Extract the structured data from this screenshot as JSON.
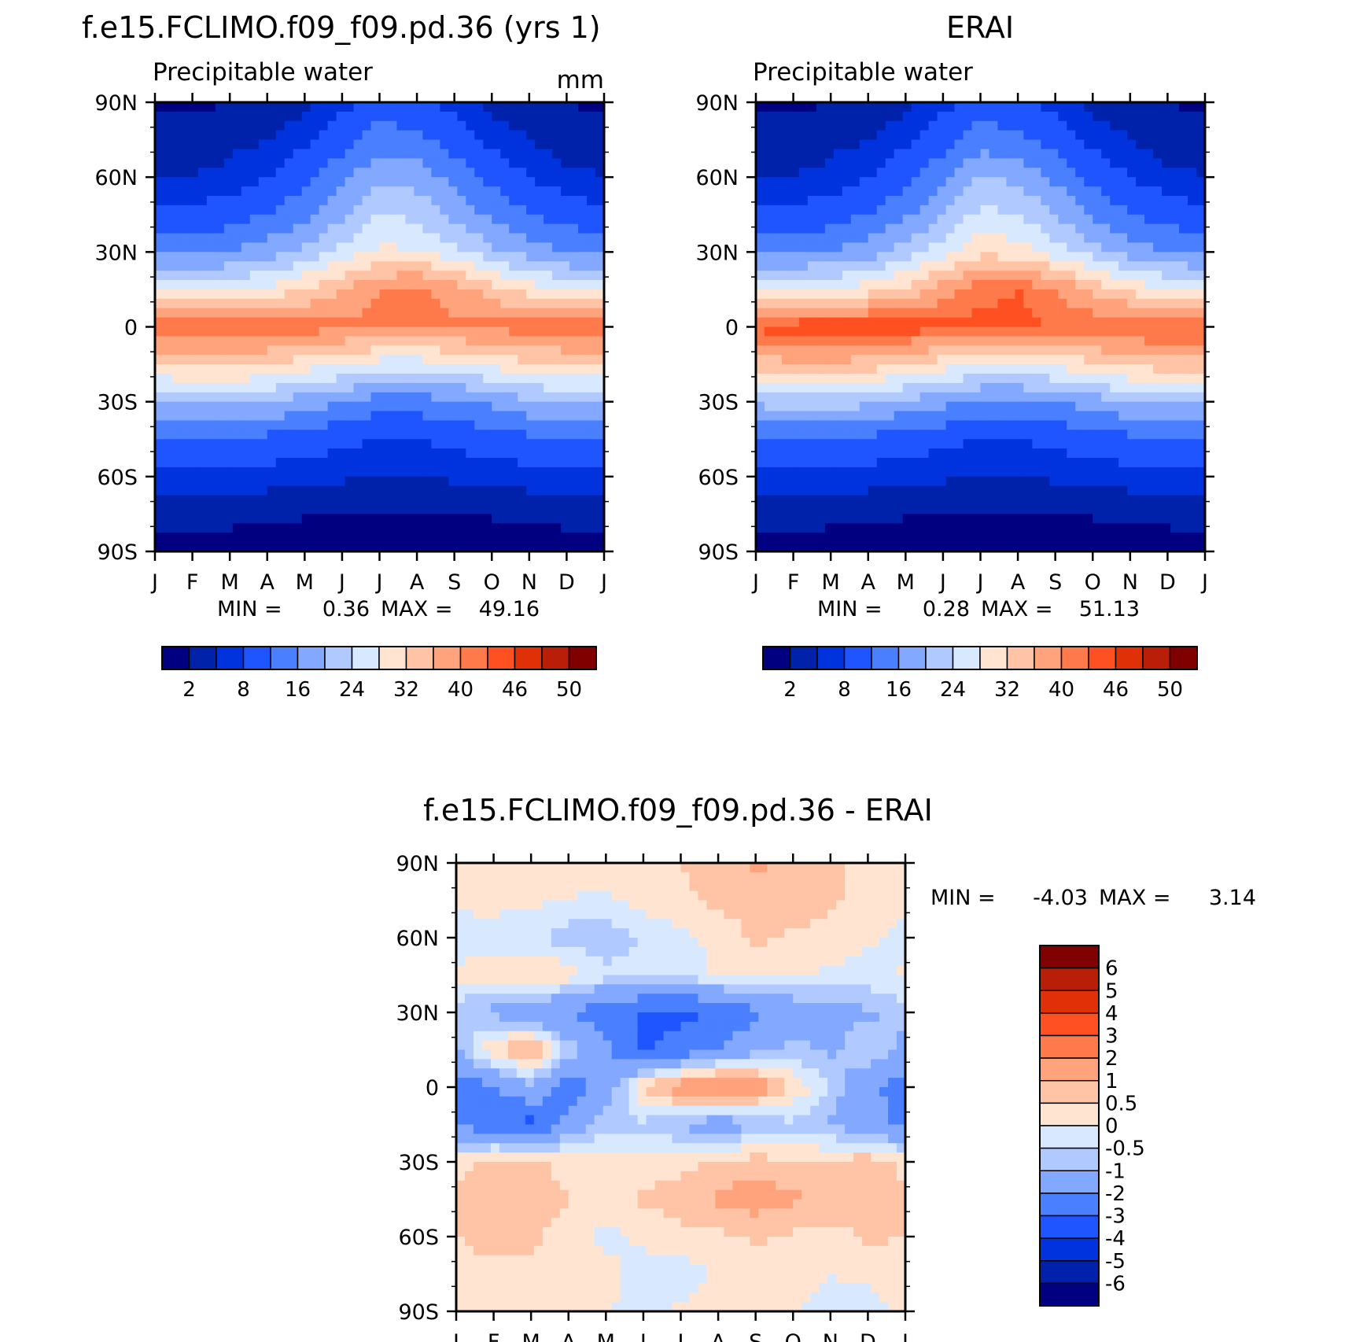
{
  "months": [
    "J",
    "F",
    "M",
    "A",
    "M",
    "J",
    "J",
    "A",
    "S",
    "O",
    "N",
    "D",
    "J"
  ],
  "lat_labels": [
    "90N",
    "60N",
    "30N",
    "0",
    "30S",
    "60S",
    "90S"
  ],
  "panels": [
    {
      "id": "model",
      "title": "f.e15.FCLIMO.f09_f09.pd.36 (yrs 1)",
      "subtitle": "Precipitable water",
      "units": "mm",
      "stats": {
        "min_label": "MIN =",
        "min": "0.36",
        "max_label": "MAX =",
        "max": "49.16"
      }
    },
    {
      "id": "obs",
      "title": "ERAI",
      "subtitle": "Precipitable water",
      "units": "",
      "stats": {
        "min_label": "MIN =",
        "min": "0.28",
        "max_label": "MAX =",
        "max": "51.13"
      }
    },
    {
      "id": "diff",
      "title": "f.e15.FCLIMO.f09_f09.pd.36 - ERAI",
      "subtitle": "",
      "units": "",
      "stats": {
        "min_label": "MIN =",
        "min": "-4.03",
        "max_label": "MAX =",
        "max": "3.14"
      }
    }
  ],
  "colorbar_abs": {
    "colors": [
      "#000080",
      "#0022aa",
      "#0033dd",
      "#1e55ff",
      "#4a7fff",
      "#82a8ff",
      "#b0c9ff",
      "#d8e8ff",
      "#ffe4d2",
      "#ffc4a6",
      "#ffa37c",
      "#ff7a4a",
      "#ff5022",
      "#e03008",
      "#b81e08",
      "#800000"
    ],
    "labels": [
      "2",
      "8",
      "16",
      "24",
      "32",
      "40",
      "46",
      "50"
    ]
  },
  "colorbar_diff": {
    "colors": [
      "#000080",
      "#0022aa",
      "#0033dd",
      "#1e55ff",
      "#4a7fff",
      "#82a8ff",
      "#b0c9ff",
      "#d8e8ff",
      "#ffe4d2",
      "#ffc4a6",
      "#ffa37c",
      "#ff7a4a",
      "#ff5022",
      "#e03008",
      "#b81e08",
      "#800000"
    ],
    "labels": [
      "6",
      "5",
      "4",
      "3",
      "2",
      "1",
      "0.5",
      "0",
      "-0.5",
      "-1",
      "-2",
      "-3",
      "-4",
      "-5",
      "-6"
    ]
  },
  "chart_data": [
    {
      "type": "heatmap",
      "title": "f.e15.FCLIMO.f09_f09.pd.36 (yrs 1)",
      "subtitle": "Precipitable water",
      "units": "mm",
      "x": [
        "Jan",
        "Feb",
        "Mar",
        "Apr",
        "May",
        "Jun",
        "Jul",
        "Aug",
        "Sep",
        "Oct",
        "Nov",
        "Dec",
        "Jan"
      ],
      "y": [
        90,
        75,
        60,
        45,
        30,
        15,
        0,
        -15,
        -30,
        -45,
        -60,
        -75,
        -90
      ],
      "z": [
        [
          1.5,
          1.5,
          2,
          3,
          4,
          7,
          10,
          9,
          7,
          4,
          2,
          2,
          1.5
        ],
        [
          3,
          3,
          4,
          5,
          7,
          10,
          14,
          13,
          10,
          7,
          5,
          3,
          3
        ],
        [
          5,
          5,
          6,
          8,
          11,
          15,
          19,
          18,
          15,
          11,
          8,
          6,
          5
        ],
        [
          9,
          9,
          10,
          12,
          15,
          19,
          24,
          23,
          19,
          15,
          12,
          10,
          9
        ],
        [
          15,
          15,
          16,
          18,
          21,
          25,
          29,
          28,
          25,
          21,
          18,
          16,
          15
        ],
        [
          26,
          26,
          27,
          29,
          32,
          36,
          40,
          41,
          38,
          34,
          30,
          27,
          26
        ],
        [
          43,
          44,
          44,
          43,
          42,
          41,
          41,
          41,
          41,
          41,
          42,
          43,
          43
        ],
        [
          32,
          33,
          33,
          32,
          30,
          28,
          26,
          26,
          27,
          29,
          31,
          32,
          32
        ],
        [
          20,
          21,
          21,
          20,
          18,
          16,
          14,
          14,
          15,
          17,
          19,
          20,
          20
        ],
        [
          12,
          12,
          12,
          11,
          10,
          9,
          8,
          8,
          9,
          10,
          11,
          12,
          12
        ],
        [
          7,
          7,
          7,
          6.5,
          6,
          5.5,
          5,
          5,
          5.5,
          6,
          6.5,
          7,
          7
        ],
        [
          3,
          3,
          2.8,
          2.5,
          2.2,
          2,
          1.8,
          1.8,
          2,
          2.2,
          2.5,
          2.8,
          3
        ],
        [
          0.8,
          0.8,
          0.7,
          0.6,
          0.5,
          0.45,
          0.4,
          0.4,
          0.45,
          0.5,
          0.6,
          0.7,
          0.8
        ]
      ],
      "ylim": [
        -90,
        90
      ],
      "levels": [
        2,
        5,
        8,
        12,
        16,
        20,
        24,
        28,
        32,
        36,
        40,
        43,
        46,
        48,
        50
      ],
      "min": 0.36,
      "max": 49.16
    },
    {
      "type": "heatmap",
      "title": "ERAI",
      "subtitle": "Precipitable water",
      "x": [
        "Jan",
        "Feb",
        "Mar",
        "Apr",
        "May",
        "Jun",
        "Jul",
        "Aug",
        "Sep",
        "Oct",
        "Nov",
        "Dec",
        "Jan"
      ],
      "y": [
        90,
        75,
        60,
        45,
        30,
        15,
        0,
        -15,
        -30,
        -45,
        -60,
        -75,
        -90
      ],
      "z": [
        [
          1.5,
          1.5,
          2,
          3,
          4,
          7,
          10,
          9,
          7,
          4,
          2,
          2,
          1.5
        ],
        [
          3,
          3,
          4,
          5,
          7,
          10,
          14,
          13,
          10,
          7,
          5,
          3,
          3
        ],
        [
          5,
          5,
          6,
          8,
          11,
          15,
          20,
          19,
          15,
          11,
          8,
          6,
          5
        ],
        [
          9,
          9,
          10,
          12,
          15,
          20,
          25,
          24,
          20,
          15,
          12,
          10,
          9
        ],
        [
          15,
          15,
          16,
          18,
          22,
          26,
          31,
          30,
          26,
          22,
          18,
          16,
          15
        ],
        [
          27,
          27,
          28,
          30,
          33,
          38,
          42,
          43,
          40,
          35,
          31,
          28,
          27
        ],
        [
          44,
          45,
          46,
          46,
          45,
          44,
          44,
          44,
          43,
          43,
          44,
          44,
          44
        ],
        [
          34,
          35,
          35,
          34,
          32,
          30,
          28,
          28,
          29,
          31,
          33,
          34,
          34
        ],
        [
          21,
          22,
          22,
          21,
          19,
          17,
          15,
          15,
          16,
          18,
          20,
          21,
          21
        ],
        [
          12,
          12,
          12,
          11,
          10,
          9,
          8,
          8,
          9,
          10,
          11,
          12,
          12
        ],
        [
          7,
          7,
          7,
          6.5,
          6,
          5.5,
          5,
          5,
          5.5,
          6,
          6.5,
          7,
          7
        ],
        [
          3,
          3,
          2.8,
          2.5,
          2.2,
          2,
          1.8,
          1.8,
          2,
          2.2,
          2.5,
          2.8,
          3
        ],
        [
          0.7,
          0.7,
          0.6,
          0.5,
          0.45,
          0.4,
          0.35,
          0.35,
          0.4,
          0.45,
          0.5,
          0.6,
          0.7
        ]
      ],
      "ylim": [
        -90,
        90
      ],
      "levels": [
        2,
        5,
        8,
        12,
        16,
        20,
        24,
        28,
        32,
        36,
        40,
        43,
        46,
        48,
        50
      ],
      "min": 0.28,
      "max": 51.13
    },
    {
      "type": "heatmap",
      "title": "f.e15.FCLIMO.f09_f09.pd.36 - ERAI",
      "x": [
        "Jan",
        "Feb",
        "Mar",
        "Apr",
        "May",
        "Jun",
        "Jul",
        "Aug",
        "Sep",
        "Oct",
        "Nov",
        "Dec",
        "Jan"
      ],
      "y": [
        90,
        75,
        60,
        45,
        30,
        15,
        0,
        -15,
        -30,
        -45,
        -60,
        -75,
        -90
      ],
      "z": [
        [
          0.2,
          0.2,
          0.2,
          0.1,
          0.2,
          0.3,
          0.5,
          0.8,
          1.1,
          0.9,
          0.6,
          0.3,
          0.2
        ],
        [
          0.1,
          0.2,
          0.1,
          0,
          -0.1,
          0.2,
          0.4,
          0.6,
          0.7,
          0.8,
          0.6,
          0.3,
          0.1
        ],
        [
          -0.2,
          -0.3,
          -0.4,
          -0.8,
          -0.9,
          -0.4,
          -0.2,
          0.2,
          0.6,
          0.4,
          0.3,
          0.1,
          -0.2
        ],
        [
          0.1,
          0.3,
          0.6,
          0.3,
          -0.3,
          -0.4,
          -0.3,
          0.1,
          0.2,
          0.1,
          -0.1,
          -0.2,
          0.1
        ],
        [
          -0.8,
          -1.2,
          -1.7,
          -2.1,
          -2.6,
          -3.1,
          -3.3,
          -2.9,
          -2.2,
          -1.6,
          -1.3,
          -1.1,
          -0.8
        ],
        [
          -1.2,
          0.6,
          1.2,
          -0.6,
          -1.8,
          -3.2,
          -2.6,
          -2.1,
          -1.2,
          -0.8,
          -1.1,
          -0.6,
          -1.2
        ],
        [
          -2.6,
          -2.1,
          -1.1,
          -2.6,
          -1.6,
          0.6,
          1.6,
          2.2,
          1.6,
          0.5,
          -0.6,
          -1.6,
          -2.6
        ],
        [
          -2.2,
          -2.6,
          -3.3,
          -1.6,
          -0.6,
          -0.6,
          -1.1,
          -1.6,
          -1.1,
          -0.6,
          -1.1,
          -1.6,
          -2.2
        ],
        [
          0.3,
          0.8,
          0.6,
          0.3,
          0.1,
          0.2,
          0.3,
          0.6,
          0.8,
          0.5,
          0.6,
          0.9,
          0.3
        ],
        [
          0.6,
          0.8,
          0.9,
          0.5,
          0.4,
          0.6,
          0.8,
          1.1,
          1.3,
          1.1,
          0.9,
          0.8,
          0.6
        ],
        [
          0.5,
          0.8,
          0.6,
          0.2,
          -0.2,
          0.1,
          0.3,
          0.4,
          0.6,
          0.4,
          0.3,
          0.6,
          0.5
        ],
        [
          0.2,
          0.3,
          0.4,
          0.3,
          0.2,
          -0.2,
          -0.3,
          0.1,
          0.2,
          0.1,
          0,
          0.1,
          0.2
        ],
        [
          0.1,
          0.1,
          0.2,
          0.1,
          0,
          -0.1,
          0.1,
          0.2,
          0.1,
          0,
          -0.1,
          -0.2,
          0.1
        ]
      ],
      "ylim": [
        -90,
        90
      ],
      "levels": [
        -6,
        -5,
        -4,
        -3,
        -2,
        -1,
        -0.5,
        0,
        0.5,
        1,
        2,
        3,
        4,
        5,
        6
      ],
      "min": -4.03,
      "max": 3.14
    }
  ]
}
